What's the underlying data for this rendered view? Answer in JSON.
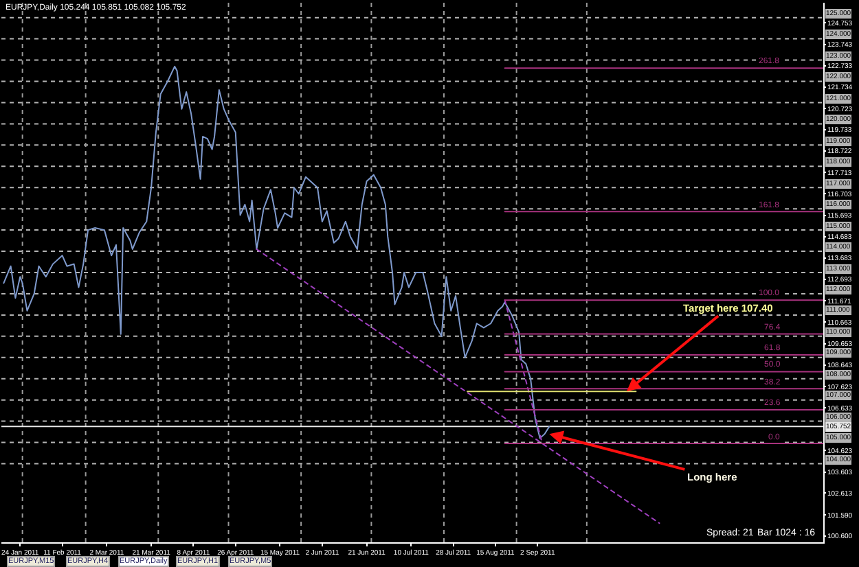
{
  "chart_data": {
    "type": "line",
    "title": "EURJPY,Daily 105.244 105.851 105.082 105.752",
    "x": [
      "2011-01-17",
      "2011-01-20",
      "2011-01-22",
      "2011-01-24",
      "2011-01-25",
      "2011-01-27",
      "2011-01-30",
      "2011-02-01",
      "2011-02-04",
      "2011-02-07",
      "2011-02-11",
      "2011-02-13",
      "2011-02-16",
      "2011-02-18",
      "2011-02-20",
      "2011-02-22",
      "2011-02-25",
      "2011-03-01",
      "2011-03-04",
      "2011-03-06",
      "2011-03-08",
      "2011-03-09",
      "2011-03-12",
      "2011-03-13",
      "2011-03-16",
      "2011-03-19",
      "2011-03-21",
      "2011-03-23",
      "2011-03-25",
      "2011-03-28",
      "2011-03-31",
      "2011-04-01",
      "2011-04-03",
      "2011-04-05",
      "2011-04-07",
      "2011-04-09",
      "2011-04-11",
      "2011-04-12",
      "2011-04-14",
      "2011-04-16",
      "2011-04-17",
      "2011-04-19",
      "2011-04-21",
      "2011-04-23",
      "2011-04-26",
      "2011-04-28",
      "2011-04-30",
      "2011-05-02",
      "2011-05-03",
      "2011-05-05",
      "2011-05-08",
      "2011-05-11",
      "2011-05-13",
      "2011-05-14",
      "2011-05-17",
      "2011-05-20",
      "2011-05-21",
      "2011-05-23",
      "2011-05-26",
      "2011-05-28",
      "2011-05-31",
      "2011-06-02",
      "2011-06-04",
      "2011-06-07",
      "2011-06-09",
      "2011-06-12",
      "2011-06-14",
      "2011-06-17",
      "2011-06-19",
      "2011-06-21",
      "2011-06-24",
      "2011-06-27",
      "2011-06-29",
      "2011-06-30",
      "2011-07-02",
      "2011-07-03",
      "2011-07-06",
      "2011-07-07",
      "2011-07-09",
      "2011-07-12",
      "2011-07-15",
      "2011-07-17",
      "2011-07-20",
      "2011-07-23",
      "2011-07-25",
      "2011-07-27",
      "2011-07-29",
      "2011-07-31",
      "2011-08-02",
      "2011-08-05",
      "2011-08-07",
      "2011-08-10",
      "2011-08-13",
      "2011-08-16",
      "2011-08-18",
      "2011-08-19",
      "2011-08-22",
      "2011-08-25",
      "2011-08-26",
      "2011-08-28",
      "2011-08-30",
      "2011-09-01",
      "2011-09-03",
      "2011-09-05",
      "2011-09-07"
    ],
    "series": [
      {
        "color": "#7f9acd",
        "values": [
          112.5,
          113.3,
          111.8,
          112.8,
          112.5,
          111.2,
          112.0,
          113.3,
          112.8,
          113.4,
          113.8,
          113.3,
          113.4,
          112.3,
          113.4,
          115.0,
          115.1,
          115.0,
          113.8,
          114.3,
          110.1,
          115.1,
          114.5,
          114.1,
          114.9,
          115.4,
          117.0,
          119.6,
          121.4,
          122.0,
          122.7,
          122.5,
          120.7,
          121.5,
          120.5,
          119.0,
          117.4,
          119.4,
          119.3,
          118.8,
          119.4,
          121.6,
          120.7,
          120.2,
          119.6,
          115.7,
          116.2,
          115.4,
          116.4,
          114.1,
          116.0,
          116.9,
          115.8,
          115.1,
          115.8,
          115.6,
          117.0,
          116.7,
          117.5,
          117.3,
          117.0,
          115.4,
          115.9,
          114.4,
          114.6,
          115.4,
          114.7,
          114.1,
          116.2,
          117.3,
          117.6,
          117.0,
          116.2,
          114.7,
          113.0,
          111.5,
          112.3,
          113.0,
          112.3,
          113.0,
          113.0,
          112.1,
          110.6,
          110.0,
          112.8,
          111.2,
          111.9,
          110.4,
          109.0,
          109.8,
          110.6,
          110.4,
          110.6,
          111.2,
          111.4,
          111.6,
          111.0,
          110.2,
          108.9,
          108.7,
          108.0,
          106.1,
          105.2,
          105.4,
          105.75
        ]
      },
      {
        "color": "#a040c0",
        "line_style": "dotted",
        "x": [
          "2011-05-05",
          "2011-10-24"
        ],
        "values": [
          114.1,
          101.2
        ]
      },
      {
        "color": "#a040c0",
        "line_style": "dotted",
        "x": [
          "2011-08-19",
          "2011-09-04"
        ],
        "values": [
          111.7,
          104.95
        ]
      },
      {
        "name": "261.8",
        "color": "#a8327e",
        "x": [
          "2011-08-19",
          "2012-01-02"
        ],
        "values": [
          122.62,
          122.62
        ]
      },
      {
        "name": "161.8",
        "color": "#a8327e",
        "x": [
          "2011-08-19",
          "2012-01-02"
        ],
        "values": [
          115.87,
          115.87
        ]
      },
      {
        "name": "100.0",
        "color": "#a8327e",
        "x": [
          "2011-08-19",
          "2012-01-02"
        ],
        "values": [
          111.7,
          111.7
        ]
      },
      {
        "name": "76.4",
        "color": "#a8327e",
        "x": [
          "2011-08-19",
          "2012-01-02"
        ],
        "values": [
          110.11,
          110.11
        ]
      },
      {
        "name": "61.8",
        "color": "#a8327e",
        "x": [
          "2011-08-19",
          "2012-01-02"
        ],
        "values": [
          109.12,
          109.12
        ]
      },
      {
        "name": "50.0",
        "color": "#a8327e",
        "x": [
          "2011-08-19",
          "2012-01-02"
        ],
        "values": [
          108.33,
          108.33
        ]
      },
      {
        "name": "38.2",
        "color": "#a8327e",
        "x": [
          "2011-08-19",
          "2012-01-02"
        ],
        "values": [
          107.53,
          107.53
        ]
      },
      {
        "name": "23.6",
        "color": "#a8327e",
        "x": [
          "2011-08-19",
          "2012-01-02"
        ],
        "values": [
          106.54,
          106.54
        ]
      },
      {
        "name": "0.0",
        "color": "#a8327e",
        "x": [
          "2011-08-19",
          "2012-01-02"
        ],
        "values": [
          104.95,
          104.95
        ]
      },
      {
        "color": "#e0e070",
        "x": [
          "2011-08-03",
          "2011-10-14"
        ],
        "values": [
          107.4,
          107.4
        ]
      }
    ],
    "xlim": [
      "2011-01-16",
      "2012-01-02"
    ],
    "xticks": [
      {
        "value": "2011-01-24",
        "label": "24 Jan 2011"
      },
      {
        "value": "2011-02-11",
        "label": "11 Feb 2011"
      },
      {
        "value": "2011-03-02",
        "label": "2 Mar 2011"
      },
      {
        "value": "2011-03-21",
        "label": "21 Mar 2011"
      },
      {
        "value": "2011-04-08",
        "label": "8 Apr 2011"
      },
      {
        "value": "2011-04-26",
        "label": "26 Apr 2011"
      },
      {
        "value": "2011-05-15",
        "label": "15 May 2011"
      },
      {
        "value": "2011-06-02",
        "label": "2 Jun 2011"
      },
      {
        "value": "2011-06-21",
        "label": "21 Jun 2011"
      },
      {
        "value": "2011-07-10",
        "label": "10 Jul 2011"
      },
      {
        "value": "2011-07-28",
        "label": "28 Jul 2011"
      },
      {
        "value": "2011-08-15",
        "label": "15 Aug 2011"
      },
      {
        "value": "2011-09-02",
        "label": "2 Sep 2011"
      }
    ],
    "ylim": [
      100.3,
      125.7
    ],
    "yticks": [
      {
        "value": 100.6,
        "label": "100.600"
      },
      {
        "value": 101.59,
        "label": "101.590"
      },
      {
        "value": 102.613,
        "label": "102.613"
      },
      {
        "value": 103.603,
        "label": "103.603"
      },
      {
        "value": 104.623,
        "label": "104.623"
      },
      {
        "value": 106.633,
        "label": "106.633"
      },
      {
        "value": 107.623,
        "label": "107.623"
      },
      {
        "value": 108.643,
        "label": "108.643"
      },
      {
        "value": 109.653,
        "label": "109.653"
      },
      {
        "value": 110.663,
        "label": "110.663"
      },
      {
        "value": 111.671,
        "label": "111.671"
      },
      {
        "value": 112.693,
        "label": "112.693"
      },
      {
        "value": 113.683,
        "label": "113.683"
      },
      {
        "value": 114.683,
        "label": "114.683"
      },
      {
        "value": 115.693,
        "label": "115.693"
      },
      {
        "value": 116.703,
        "label": "116.703"
      },
      {
        "value": 117.713,
        "label": "117.713"
      },
      {
        "value": 118.722,
        "label": "118.722"
      },
      {
        "value": 119.733,
        "label": "119.733"
      },
      {
        "value": 120.723,
        "label": "120.723"
      },
      {
        "value": 121.734,
        "label": "121.734"
      },
      {
        "value": 122.733,
        "label": "122.733"
      },
      {
        "value": 123.743,
        "label": "123.743"
      },
      {
        "value": 124.753,
        "label": "124.753"
      }
    ],
    "ref_lines": [
      {
        "axis": "y",
        "value": 104,
        "label": "104.000",
        "color": "#b4b4b4",
        "line_style": "dotted"
      },
      {
        "axis": "y",
        "value": 105,
        "label": "105.000",
        "color": "#b4b4b4",
        "line_style": "dotted"
      },
      {
        "axis": "y",
        "value": 106,
        "label": "106.000",
        "color": "#b4b4b4",
        "line_style": "dotted"
      },
      {
        "axis": "y",
        "value": 107,
        "label": "107.000",
        "color": "#b4b4b4",
        "line_style": "dotted"
      },
      {
        "axis": "y",
        "value": 108,
        "label": "108.000",
        "color": "#b4b4b4",
        "line_style": "dotted"
      },
      {
        "axis": "y",
        "value": 109,
        "label": "109.000",
        "color": "#b4b4b4",
        "line_style": "dotted"
      },
      {
        "axis": "y",
        "value": 110,
        "label": "110.000",
        "color": "#b4b4b4",
        "line_style": "dotted"
      },
      {
        "axis": "y",
        "value": 111,
        "label": "111.000",
        "color": "#b4b4b4",
        "line_style": "dotted"
      },
      {
        "axis": "y",
        "value": 112,
        "label": "112.000",
        "color": "#b4b4b4",
        "line_style": "dotted"
      },
      {
        "axis": "y",
        "value": 113,
        "label": "113.000",
        "color": "#b4b4b4",
        "line_style": "dotted"
      },
      {
        "axis": "y",
        "value": 114,
        "label": "114.000",
        "color": "#b4b4b4",
        "line_style": "dotted"
      },
      {
        "axis": "y",
        "value": 115,
        "label": "115.000",
        "color": "#b4b4b4",
        "line_style": "dotted"
      },
      {
        "axis": "y",
        "value": 116,
        "label": "116.000",
        "color": "#b4b4b4",
        "line_style": "dotted"
      },
      {
        "axis": "y",
        "value": 117,
        "label": "117.000",
        "color": "#b4b4b4",
        "line_style": "dotted"
      },
      {
        "axis": "y",
        "value": 118,
        "label": "118.000",
        "color": "#b4b4b4",
        "line_style": "dotted"
      },
      {
        "axis": "y",
        "value": 119,
        "label": "119.000",
        "color": "#b4b4b4",
        "line_style": "dotted"
      },
      {
        "axis": "y",
        "value": 120,
        "label": "120.000",
        "color": "#b4b4b4",
        "line_style": "dotted"
      },
      {
        "axis": "y",
        "value": 121,
        "label": "121.000",
        "color": "#b4b4b4",
        "line_style": "dotted"
      },
      {
        "axis": "y",
        "value": 122,
        "label": "122.000",
        "color": "#b4b4b4",
        "line_style": "dotted"
      },
      {
        "axis": "y",
        "value": 123,
        "label": "123.000",
        "color": "#b4b4b4",
        "line_style": "dotted"
      },
      {
        "axis": "y",
        "value": 124,
        "label": "124.000",
        "color": "#b4b4b4",
        "line_style": "dotted"
      },
      {
        "axis": "y",
        "value": 125,
        "label": "125.000",
        "color": "#b4b4b4",
        "line_style": "dotted"
      },
      {
        "axis": "x",
        "value": "2011-01-25",
        "color": "#9a9a9a",
        "line_style": "dotted"
      },
      {
        "axis": "x",
        "value": "2011-02-21",
        "color": "#9a9a9a",
        "line_style": "dotted"
      },
      {
        "axis": "x",
        "value": "2011-03-24",
        "color": "#9a9a9a",
        "line_style": "dotted"
      },
      {
        "axis": "x",
        "value": "2011-04-23",
        "color": "#9a9a9a",
        "line_style": "dotted"
      },
      {
        "axis": "x",
        "value": "2011-05-24",
        "color": "#9a9a9a",
        "line_style": "dotted"
      },
      {
        "axis": "x",
        "value": "2011-06-23",
        "color": "#9a9a9a",
        "line_style": "dotted"
      },
      {
        "axis": "x",
        "value": "2011-07-24",
        "color": "#9a9a9a",
        "line_style": "dotted"
      },
      {
        "axis": "x",
        "value": "2011-08-24",
        "color": "#9a9a9a",
        "line_style": "dotted"
      },
      {
        "axis": "x",
        "value": "2011-09-23",
        "color": "#9a9a9a",
        "line_style": "dotted"
      },
      {
        "axis": "y",
        "value": 105.752,
        "label": "105.752",
        "color": "#e8e8e8"
      }
    ],
    "annotations": [
      {
        "text": "Target here 107.40",
        "x": "2011-10-10",
        "y": 107.4
      },
      {
        "text": "Long here",
        "x": "2011-09-07",
        "y": 105.4
      },
      "Spread: 21",
      "Bar 1024 : 16",
      "EURJPY,M15",
      "EURJPY,H4",
      "EURJPY,Daily",
      "EURJPY,H1",
      "EURJPY,M5"
    ]
  }
}
